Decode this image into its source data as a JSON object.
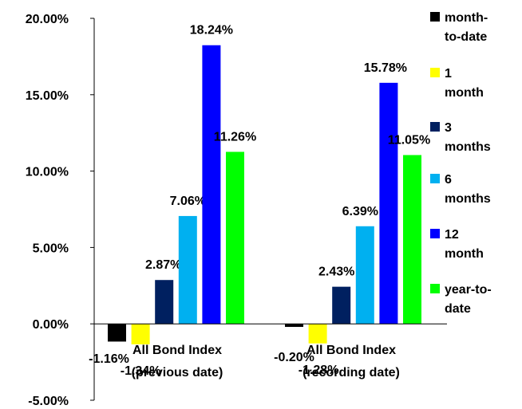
{
  "chart_data": {
    "type": "bar",
    "categories": [
      [
        "All Bond Index",
        "(previous date)"
      ],
      [
        "All Bond Index",
        "(recording date)"
      ]
    ],
    "series": [
      {
        "name": [
          "month-",
          "to-date"
        ],
        "color": "#000000",
        "values": [
          -1.16,
          -0.2
        ],
        "labels": [
          "-1.16%",
          "-0.20%"
        ]
      },
      {
        "name": [
          "1",
          "month"
        ],
        "color": "#FFFF00",
        "values": [
          -1.34,
          -1.28
        ],
        "labels": [
          "-1.34%",
          "-1.28%"
        ]
      },
      {
        "name": [
          "3",
          "months"
        ],
        "color": "#002060",
        "values": [
          2.87,
          2.43
        ],
        "labels": [
          "2.87%",
          "2.43%"
        ]
      },
      {
        "name": [
          "6",
          "months"
        ],
        "color": "#00B0F0",
        "values": [
          7.06,
          6.39
        ],
        "labels": [
          "7.06%",
          "6.39%"
        ]
      },
      {
        "name": [
          "12",
          "month"
        ],
        "color": "#0000FF",
        "values": [
          18.24,
          15.78
        ],
        "labels": [
          "18.24%",
          "15.78%"
        ]
      },
      {
        "name": [
          "year-to-",
          "date"
        ],
        "color": "#00FF00",
        "values": [
          11.26,
          11.05
        ],
        "labels": [
          "11.26%",
          "11.05%"
        ]
      }
    ],
    "ylim": [
      -5,
      20
    ],
    "yticks": [
      20,
      15,
      10,
      5,
      0,
      -5
    ],
    "ytick_labels": [
      "20.00%",
      "15.00%",
      "10.00%",
      "5.00%",
      "0.00%",
      "-5.00%"
    ],
    "grid": false,
    "legend_position": "right"
  }
}
